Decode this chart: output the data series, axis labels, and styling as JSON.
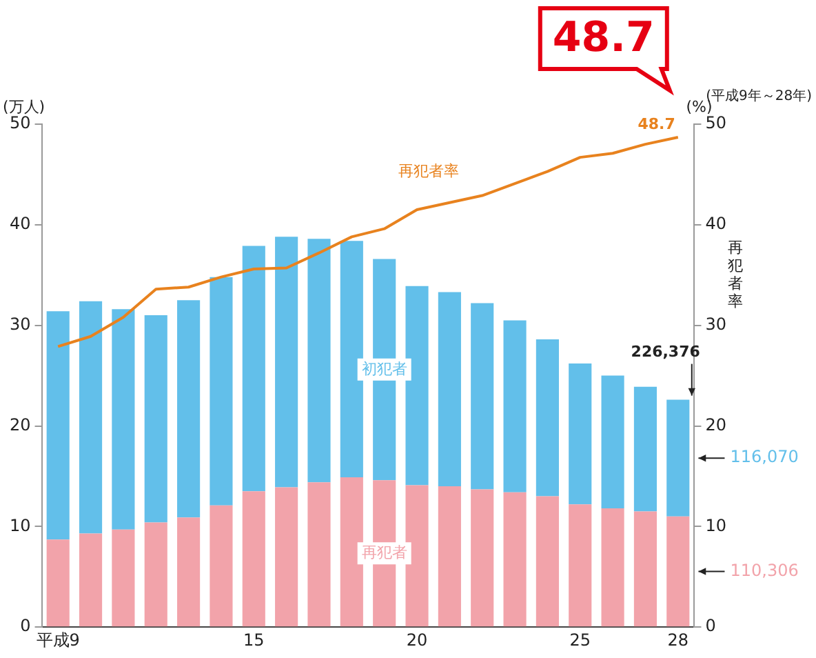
{
  "chart_data": {
    "type": "bar",
    "stacked": true,
    "legend": false,
    "grid": false,
    "categories": [
      "平成9",
      null,
      null,
      null,
      null,
      null,
      "15",
      null,
      null,
      null,
      null,
      "20",
      null,
      null,
      null,
      null,
      "25",
      null,
      null,
      "28"
    ],
    "ylabel": "(万人)",
    "y2label": "再犯者率",
    "ylim": [
      0,
      50
    ],
    "yticks": [
      0,
      10,
      20,
      30,
      40,
      50
    ],
    "y2lim": [
      0,
      50
    ],
    "y2ticks": [
      0,
      10,
      20,
      30,
      40,
      50
    ],
    "series": [
      {
        "name": "再犯者",
        "color": "#f2a3aa",
        "values": [
          8.7,
          9.3,
          9.7,
          10.4,
          10.9,
          12.1,
          13.5,
          13.9,
          14.4,
          14.9,
          14.6,
          14.1,
          14.0,
          13.7,
          13.4,
          13.0,
          12.2,
          11.8,
          11.5,
          11.0
        ]
      },
      {
        "name": "初犯者",
        "color": "#62bfea",
        "values": [
          22.7,
          23.1,
          21.9,
          20.6,
          21.6,
          22.7,
          24.4,
          24.9,
          24.2,
          23.5,
          22.0,
          19.8,
          19.3,
          18.5,
          17.1,
          15.6,
          14.0,
          13.2,
          12.4,
          11.6
        ]
      },
      {
        "name": "再犯者率",
        "type": "line",
        "axis": "y2",
        "color": "#e8821e",
        "values": [
          27.9,
          28.9,
          30.8,
          33.6,
          33.8,
          34.8,
          35.6,
          35.7,
          37.2,
          38.8,
          39.6,
          41.5,
          42.2,
          42.9,
          44.1,
          45.3,
          46.7,
          47.1,
          48.0,
          48.7
        ],
        "value_labels": [
          null,
          null,
          null,
          null,
          null,
          null,
          null,
          null,
          null,
          null,
          null,
          null,
          null,
          null,
          null,
          null,
          null,
          null,
          null,
          "48.7"
        ]
      }
    ],
    "annotations": [
      "(平成9年～28年)",
      "(%)",
      "48.7",
      "116,070",
      "110,306",
      {
        "text": "226,376",
        "x": "28",
        "y": 22.6
      }
    ]
  }
}
